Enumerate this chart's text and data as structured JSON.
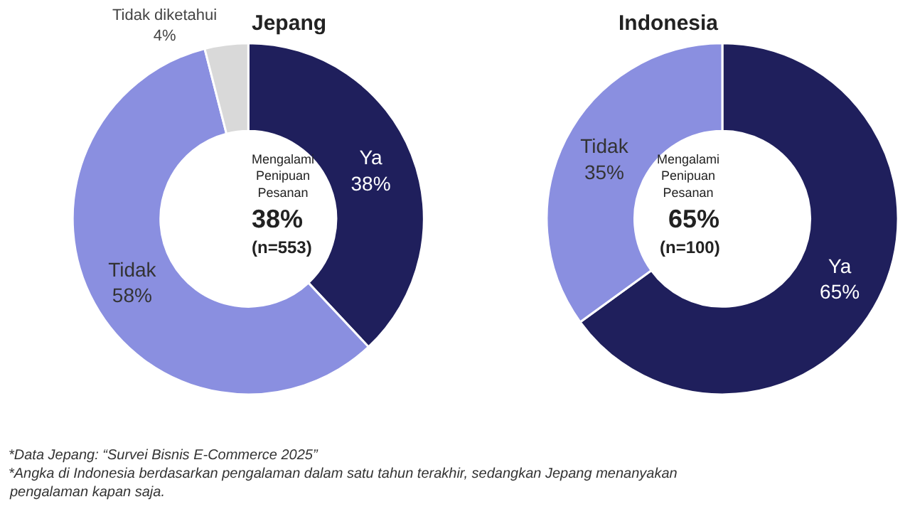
{
  "chart_data": [
    {
      "type": "donut",
      "title": "Jepang",
      "categories": [
        "Ya",
        "Tidak",
        "Tidak diketahui"
      ],
      "values": [
        38,
        58,
        4
      ],
      "colors": [
        "#1f1f5c",
        "#8a8fe0",
        "#d9d9d9"
      ],
      "value_labels": [
        "38%",
        "58%",
        "4%"
      ],
      "annotations": [
        "Mengalami Penipuan Pesanan",
        "38%",
        "(n=553)",
        "*Data Jepang: “Survei Bisnis E-Commerce 2025”",
        "*Angka di Indonesia berdasarkan pengalaman dalam satu tahun terakhir, sedangkan Jepang menanyakan pengalaman kapan saja."
      ]
    },
    {
      "type": "donut",
      "title": "Indonesia",
      "categories": [
        "Ya",
        "Tidak"
      ],
      "values": [
        65,
        35
      ],
      "colors": [
        "#1f1f5c",
        "#8a8fe0"
      ],
      "value_labels": [
        "65%",
        "35%"
      ],
      "annotations": [
        "Mengalami Penipuan Pesanan",
        "65%",
        "(n=100)"
      ]
    }
  ]
}
